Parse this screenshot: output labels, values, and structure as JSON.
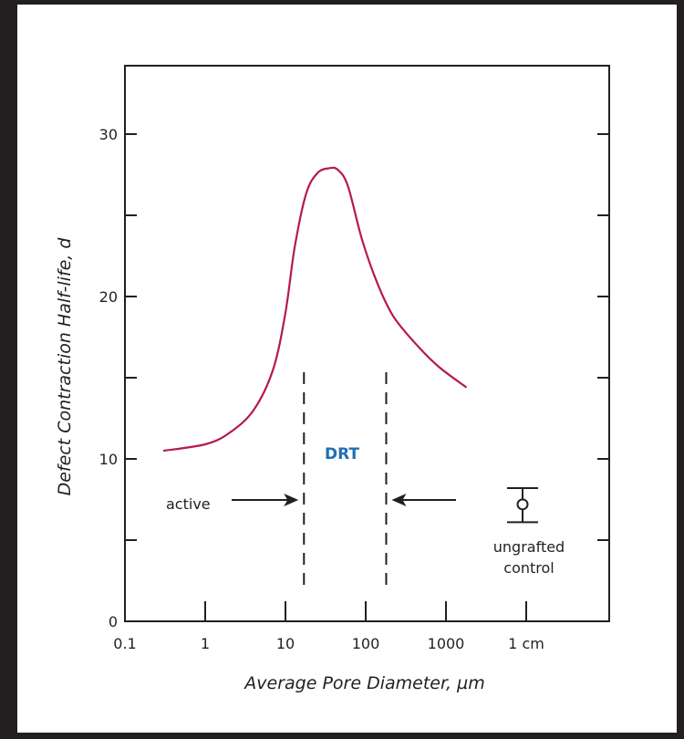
{
  "chart_data": {
    "type": "line",
    "xlabel": "Average Pore Diameter, µm",
    "ylabel": "Defect Contraction Half-life, d",
    "x_scale": "log",
    "xlim": [
      0.1,
      7000
    ],
    "ylim": [
      0,
      35
    ],
    "x_ticks": [
      {
        "value": 0.1,
        "label": "0.1"
      },
      {
        "value": 1,
        "label": "1"
      },
      {
        "value": 10,
        "label": "10"
      },
      {
        "value": 100,
        "label": "100"
      },
      {
        "value": 1000,
        "label": "1000"
      },
      {
        "value": 10000,
        "label": "1 cm"
      }
    ],
    "y_ticks": [
      {
        "value": 0,
        "label": "0"
      },
      {
        "value": 5,
        "label": ""
      },
      {
        "value": 10,
        "label": "10"
      },
      {
        "value": 15,
        "label": ""
      },
      {
        "value": 20,
        "label": "20"
      },
      {
        "value": 25,
        "label": ""
      },
      {
        "value": 30,
        "label": "30"
      }
    ],
    "grid": false,
    "series": [
      {
        "color": "#b5194f",
        "points": [
          {
            "x": 0.3,
            "y": 10.5
          },
          {
            "x": 1,
            "y": 10.9
          },
          {
            "x": 2,
            "y": 11.6
          },
          {
            "x": 4,
            "y": 13.0
          },
          {
            "x": 7,
            "y": 15.5
          },
          {
            "x": 10,
            "y": 19.0
          },
          {
            "x": 13,
            "y": 23.0
          },
          {
            "x": 18,
            "y": 26.3
          },
          {
            "x": 25,
            "y": 27.6
          },
          {
            "x": 35,
            "y": 27.9
          },
          {
            "x": 45,
            "y": 27.8
          },
          {
            "x": 60,
            "y": 26.8
          },
          {
            "x": 90,
            "y": 23.5
          },
          {
            "x": 140,
            "y": 20.8
          },
          {
            "x": 220,
            "y": 18.8
          },
          {
            "x": 400,
            "y": 17.2
          },
          {
            "x": 800,
            "y": 15.7
          },
          {
            "x": 1800,
            "y": 14.4
          }
        ]
      }
    ],
    "drt_boundaries": [
      17,
      180
    ],
    "drt_label": "DRT",
    "active_label": "active",
    "control": {
      "label_line1": "ungrafted",
      "label_line2": "control",
      "x": 7200,
      "y": 7.2,
      "y_low": 6.1,
      "y_high": 8.2
    }
  }
}
